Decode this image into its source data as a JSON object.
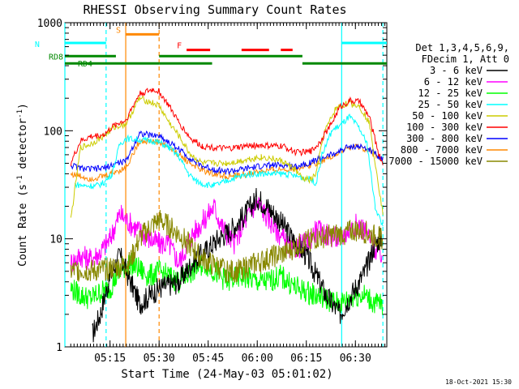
{
  "chart_data": {
    "type": "line",
    "title": "RHESSI Observing Summary Count Rates",
    "xlabel": "Start Time (24-May-03 05:01:02)",
    "ylabel_main": "Count Rate (s",
    "ylabel_sup1": "-1",
    "ylabel_mid": " detector",
    "ylabel_sup2": "-1",
    "ylabel_end": ")",
    "y_scale": "log",
    "ylim": [
      1,
      1000
    ],
    "xlim": [
      5.02,
      6.66
    ],
    "x_ticks": [
      {
        "v": 5.25,
        "label": "05:15"
      },
      {
        "v": 5.5,
        "label": "05:30"
      },
      {
        "v": 5.75,
        "label": "05:45"
      },
      {
        "v": 6.0,
        "label": "06:00"
      },
      {
        "v": 6.25,
        "label": "06:15"
      },
      {
        "v": 6.5,
        "label": "06:30"
      }
    ],
    "y_ticks": [
      {
        "v": 1,
        "label": "1"
      },
      {
        "v": 10,
        "label": "10"
      },
      {
        "v": 100,
        "label": "100"
      },
      {
        "v": 1000,
        "label": "1000"
      }
    ],
    "legend_header": [
      "Det 1,3,4,5,6,9,",
      "FDecim 1, Att 0"
    ],
    "legend_position": "right",
    "timestamp": "18-Oct-2021 15:30",
    "series": [
      {
        "name": "3 - 6 keV",
        "color": "#000000",
        "points": [
          [
            5.16,
            1.3
          ],
          [
            5.2,
            2.0
          ],
          [
            5.25,
            4.5
          ],
          [
            5.3,
            7.0
          ],
          [
            5.4,
            2.5
          ],
          [
            5.5,
            3.5
          ],
          [
            5.6,
            4.0
          ],
          [
            5.67,
            6.0
          ],
          [
            5.73,
            7.5
          ],
          [
            5.8,
            10.0
          ],
          [
            5.85,
            11.5
          ],
          [
            5.9,
            14.0
          ],
          [
            5.95,
            18.0
          ],
          [
            6.0,
            24.0
          ],
          [
            6.05,
            20.0
          ],
          [
            6.1,
            16.0
          ],
          [
            6.18,
            10.0
          ],
          [
            6.25,
            7.0
          ],
          [
            6.35,
            3.0
          ],
          [
            6.42,
            2.0
          ],
          [
            6.5,
            3.5
          ],
          [
            6.55,
            5.0
          ],
          [
            6.6,
            9.0
          ],
          [
            6.64,
            10.5
          ]
        ]
      },
      {
        "name": "6 - 12 keV",
        "color": "#ff00ff",
        "points": [
          [
            5.05,
            6.0
          ],
          [
            5.1,
            7.0
          ],
          [
            5.15,
            6.5
          ],
          [
            5.2,
            7.5
          ],
          [
            5.25,
            10.0
          ],
          [
            5.3,
            17.0
          ],
          [
            5.35,
            14.0
          ],
          [
            5.45,
            10.0
          ],
          [
            5.5,
            9.0
          ],
          [
            5.55,
            9.0
          ],
          [
            5.6,
            6.0
          ],
          [
            5.67,
            11.0
          ],
          [
            5.73,
            15.0
          ],
          [
            5.78,
            20.0
          ],
          [
            5.82,
            13.0
          ],
          [
            5.88,
            9.0
          ],
          [
            5.95,
            16.0
          ],
          [
            6.0,
            22.0
          ],
          [
            6.05,
            16.0
          ],
          [
            6.1,
            12.0
          ],
          [
            6.17,
            8.0
          ],
          [
            6.25,
            9.0
          ],
          [
            6.3,
            12.0
          ],
          [
            6.35,
            11.0
          ],
          [
            6.42,
            10.0
          ],
          [
            6.5,
            13.5
          ],
          [
            6.55,
            12.0
          ],
          [
            6.6,
            8.0
          ],
          [
            6.64,
            7.0
          ]
        ]
      },
      {
        "name": "12 - 25 keV",
        "color": "#00ff00",
        "points": [
          [
            5.05,
            3.5
          ],
          [
            5.1,
            3.0
          ],
          [
            5.15,
            2.8
          ],
          [
            5.2,
            3.2
          ],
          [
            5.25,
            3.5
          ],
          [
            5.3,
            5.0
          ],
          [
            5.35,
            6.0
          ],
          [
            5.45,
            4.5
          ],
          [
            5.5,
            5.0
          ],
          [
            5.55,
            4.5
          ],
          [
            5.6,
            4.0
          ],
          [
            5.67,
            5.0
          ],
          [
            5.73,
            6.0
          ],
          [
            5.78,
            5.0
          ],
          [
            5.85,
            4.0
          ],
          [
            5.92,
            4.5
          ],
          [
            6.0,
            4.0
          ],
          [
            6.05,
            4.0
          ],
          [
            6.12,
            4.5
          ],
          [
            6.2,
            3.5
          ],
          [
            6.3,
            3.0
          ],
          [
            6.42,
            2.5
          ],
          [
            6.5,
            3.0
          ],
          [
            6.55,
            3.0
          ],
          [
            6.6,
            2.5
          ],
          [
            6.64,
            2.5
          ]
        ]
      },
      {
        "name": "25 - 50 keV",
        "color": "#00ffff",
        "points": [
          [
            5.07,
            32
          ],
          [
            5.12,
            31
          ],
          [
            5.18,
            31
          ],
          [
            5.22,
            33
          ],
          [
            5.26,
            40
          ],
          [
            5.3,
            75
          ],
          [
            5.33,
            85
          ],
          [
            5.48,
            80
          ],
          [
            5.5,
            78
          ],
          [
            5.55,
            70
          ],
          [
            5.6,
            58
          ],
          [
            5.65,
            40
          ],
          [
            5.69,
            34
          ],
          [
            5.73,
            32
          ],
          [
            5.78,
            31
          ],
          [
            5.82,
            33
          ],
          [
            5.87,
            36
          ],
          [
            5.92,
            38
          ],
          [
            5.97,
            40
          ],
          [
            6.02,
            40
          ],
          [
            6.08,
            40
          ],
          [
            6.14,
            40
          ],
          [
            6.2,
            38
          ],
          [
            6.26,
            36
          ],
          [
            6.3,
            33
          ],
          [
            6.33,
            60
          ],
          [
            6.38,
            100
          ],
          [
            6.43,
            115
          ],
          [
            6.47,
            135
          ],
          [
            6.52,
            105
          ],
          [
            6.56,
            75
          ],
          [
            6.6,
            20
          ],
          [
            6.64,
            13
          ]
        ]
      },
      {
        "name": "50 - 100 keV",
        "color": "#cccc00",
        "points": [
          [
            5.05,
            15
          ],
          [
            5.1,
            70
          ],
          [
            5.15,
            75
          ],
          [
            5.22,
            90
          ],
          [
            5.28,
            110
          ],
          [
            5.33,
            115
          ],
          [
            5.4,
            200
          ],
          [
            5.47,
            180
          ],
          [
            5.5,
            170
          ],
          [
            5.55,
            120
          ],
          [
            5.6,
            90
          ],
          [
            5.66,
            60
          ],
          [
            5.72,
            50
          ],
          [
            5.78,
            50
          ],
          [
            5.84,
            50
          ],
          [
            5.9,
            52
          ],
          [
            5.96,
            55
          ],
          [
            6.02,
            57
          ],
          [
            6.08,
            55
          ],
          [
            6.13,
            52
          ],
          [
            6.19,
            44
          ],
          [
            6.23,
            36
          ],
          [
            6.27,
            35
          ],
          [
            6.3,
            40
          ],
          [
            6.34,
            95
          ],
          [
            6.4,
            160
          ],
          [
            6.46,
            180
          ],
          [
            6.52,
            170
          ],
          [
            6.57,
            120
          ],
          [
            6.62,
            30
          ],
          [
            6.64,
            17
          ]
        ]
      },
      {
        "name": "100 - 300 keV",
        "color": "#ff0000",
        "points": [
          [
            5.05,
            50
          ],
          [
            5.1,
            80
          ],
          [
            5.15,
            88
          ],
          [
            5.22,
            92
          ],
          [
            5.28,
            115
          ],
          [
            5.33,
            125
          ],
          [
            5.4,
            220
          ],
          [
            5.47,
            240
          ],
          [
            5.5,
            230
          ],
          [
            5.55,
            170
          ],
          [
            5.6,
            120
          ],
          [
            5.66,
            85
          ],
          [
            5.72,
            72
          ],
          [
            5.78,
            70
          ],
          [
            5.84,
            68
          ],
          [
            5.9,
            70
          ],
          [
            5.96,
            73
          ],
          [
            6.02,
            73
          ],
          [
            6.08,
            72
          ],
          [
            6.13,
            72
          ],
          [
            6.2,
            63
          ],
          [
            6.27,
            64
          ],
          [
            6.31,
            75
          ],
          [
            6.37,
            110
          ],
          [
            6.42,
            165
          ],
          [
            6.47,
            190
          ],
          [
            6.52,
            185
          ],
          [
            6.57,
            135
          ],
          [
            6.62,
            60
          ],
          [
            6.64,
            50
          ]
        ]
      },
      {
        "name": "300 - 800 keV",
        "color": "#0000ff",
        "points": [
          [
            5.05,
            48
          ],
          [
            5.1,
            45
          ],
          [
            5.15,
            44
          ],
          [
            5.22,
            45
          ],
          [
            5.28,
            50
          ],
          [
            5.33,
            52
          ],
          [
            5.4,
            95
          ],
          [
            5.47,
            90
          ],
          [
            5.5,
            90
          ],
          [
            5.55,
            78
          ],
          [
            5.6,
            68
          ],
          [
            5.66,
            55
          ],
          [
            5.72,
            47
          ],
          [
            5.78,
            44
          ],
          [
            5.84,
            42
          ],
          [
            5.9,
            43
          ],
          [
            5.96,
            45
          ],
          [
            6.02,
            47
          ],
          [
            6.08,
            48
          ],
          [
            6.14,
            48
          ],
          [
            6.2,
            47
          ],
          [
            6.27,
            51
          ],
          [
            6.33,
            56
          ],
          [
            6.4,
            62
          ],
          [
            6.47,
            72
          ],
          [
            6.52,
            71
          ],
          [
            6.57,
            67
          ],
          [
            6.62,
            58
          ],
          [
            6.64,
            55
          ]
        ]
      },
      {
        "name": "800 - 7000 keV",
        "color": "#ff8800",
        "points": [
          [
            5.05,
            40
          ],
          [
            5.1,
            38
          ],
          [
            5.15,
            36
          ],
          [
            5.22,
            38
          ],
          [
            5.28,
            42
          ],
          [
            5.33,
            45
          ],
          [
            5.4,
            80
          ],
          [
            5.47,
            80
          ],
          [
            5.5,
            78
          ],
          [
            5.55,
            70
          ],
          [
            5.6,
            60
          ],
          [
            5.66,
            50
          ],
          [
            5.72,
            43
          ],
          [
            5.78,
            40
          ],
          [
            5.84,
            38
          ],
          [
            5.9,
            38
          ],
          [
            5.96,
            40
          ],
          [
            6.02,
            42
          ],
          [
            6.08,
            43
          ],
          [
            6.14,
            44
          ],
          [
            6.2,
            45
          ],
          [
            6.27,
            48
          ],
          [
            6.33,
            53
          ],
          [
            6.4,
            60
          ],
          [
            6.47,
            70
          ],
          [
            6.52,
            70
          ],
          [
            6.57,
            65
          ],
          [
            6.62,
            57
          ],
          [
            6.64,
            55
          ]
        ]
      },
      {
        "name": "7000 - 15000 keV",
        "color": "#888800",
        "points": [
          [
            5.05,
            5.0
          ],
          [
            5.1,
            5.2
          ],
          [
            5.15,
            5.0
          ],
          [
            5.2,
            5.1
          ],
          [
            5.25,
            5.3
          ],
          [
            5.3,
            5.5
          ],
          [
            5.35,
            6.0
          ],
          [
            5.4,
            10.0
          ],
          [
            5.46,
            13.0
          ],
          [
            5.5,
            15.0
          ],
          [
            5.55,
            13.0
          ],
          [
            5.6,
            11.0
          ],
          [
            5.65,
            9.0
          ],
          [
            5.7,
            7.0
          ],
          [
            5.75,
            6.0
          ],
          [
            5.8,
            5.5
          ],
          [
            5.85,
            5.0
          ],
          [
            5.9,
            5.0
          ],
          [
            5.95,
            5.5
          ],
          [
            6.0,
            6.0
          ],
          [
            6.05,
            6.5
          ],
          [
            6.1,
            7.0
          ],
          [
            6.15,
            7.5
          ],
          [
            6.2,
            8.5
          ],
          [
            6.28,
            10.0
          ],
          [
            6.35,
            10.5
          ],
          [
            6.42,
            11.0
          ],
          [
            6.5,
            12.0
          ],
          [
            6.55,
            11.5
          ],
          [
            6.6,
            10.5
          ],
          [
            6.64,
            10.0
          ]
        ]
      }
    ],
    "state_bars": [
      {
        "label": "N",
        "color": "#00ffff",
        "value": 650,
        "segments": [
          [
            5.02,
            5.23
          ],
          [
            6.43,
            6.66
          ]
        ]
      },
      {
        "label": "S",
        "color": "#ff8800",
        "value": 780,
        "segments": [
          [
            5.33,
            5.5
          ]
        ]
      },
      {
        "label": "F",
        "color": "#ff0000",
        "value": 560,
        "segments": [
          [
            5.64,
            5.76
          ],
          [
            5.92,
            6.06
          ],
          [
            6.12,
            6.18
          ]
        ]
      },
      {
        "label": "RD8",
        "color": "#008800",
        "value": 490,
        "segments": [
          [
            5.02,
            5.28
          ],
          [
            5.5,
            6.23
          ]
        ]
      },
      {
        "label": "RD4",
        "color": "#008800",
        "value": 420,
        "segments": [
          [
            5.02,
            5.5
          ],
          [
            5.5,
            5.77
          ],
          [
            6.23,
            6.66
          ]
        ]
      }
    ],
    "vertical_markers": [
      {
        "x": 5.02,
        "color": "#00ffff",
        "style": "solid"
      },
      {
        "x": 5.23,
        "color": "#00ffff",
        "style": "dashed"
      },
      {
        "x": 5.33,
        "color": "#ff8800",
        "style": "solid"
      },
      {
        "x": 5.5,
        "color": "#ff8800",
        "style": "dashed"
      },
      {
        "x": 6.43,
        "color": "#00ffff",
        "style": "solid"
      },
      {
        "x": 6.64,
        "color": "#00ffff",
        "style": "dashed"
      }
    ]
  }
}
